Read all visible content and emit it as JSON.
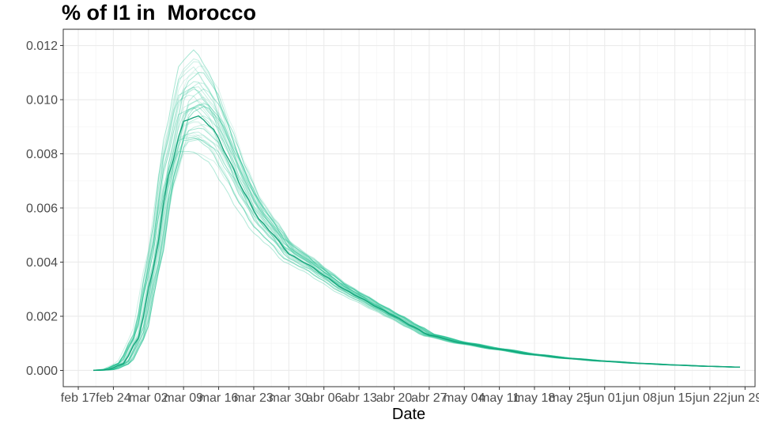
{
  "chart_data": {
    "type": "line",
    "title": "% of I1 in  Morocco",
    "xlabel": "Date",
    "ylabel": "",
    "x_range": [
      "2020-02-14",
      "2020-07-01"
    ],
    "ylim": [
      -0.0006,
      0.0126
    ],
    "x_ticks": [
      "feb 17",
      "feb 24",
      "mar 02",
      "mar 09",
      "mar 16",
      "mar 23",
      "mar 30",
      "abr 06",
      "abr 13",
      "abr 20",
      "abr 27",
      "may 04",
      "may 11",
      "may 18",
      "may 25",
      "jun 01",
      "jun 08",
      "jun 15",
      "jun 22",
      "jun 29"
    ],
    "x_tick_dates": [
      "2020-02-17",
      "2020-02-24",
      "2020-03-02",
      "2020-03-09",
      "2020-03-16",
      "2020-03-23",
      "2020-03-30",
      "2020-04-06",
      "2020-04-13",
      "2020-04-20",
      "2020-04-27",
      "2020-05-04",
      "2020-05-11",
      "2020-05-18",
      "2020-05-25",
      "2020-06-01",
      "2020-06-08",
      "2020-06-15",
      "2020-06-22",
      "2020-06-29"
    ],
    "y_ticks": [
      "0.000",
      "0.002",
      "0.004",
      "0.006",
      "0.008",
      "0.010",
      "0.012"
    ],
    "y_tick_values": [
      0,
      0.002,
      0.004,
      0.006,
      0.008,
      0.01,
      0.012
    ],
    "grid": true,
    "legend": "none",
    "colors": {
      "series": "#1dbf8e",
      "panel_border": "#333333",
      "grid_major": "#ebebeb",
      "grid_minor": "#f5f5f5"
    },
    "series": [
      {
        "role": "median",
        "x": [
          "2020-02-20",
          "2020-02-23",
          "2020-02-26",
          "2020-02-29",
          "2020-03-03",
          "2020-03-06",
          "2020-03-09",
          "2020-03-12",
          "2020-03-15",
          "2020-03-18",
          "2020-03-21",
          "2020-03-24",
          "2020-03-27",
          "2020-03-30",
          "2020-04-03",
          "2020-04-06",
          "2020-04-10",
          "2020-04-13",
          "2020-04-17",
          "2020-04-20",
          "2020-04-24",
          "2020-04-27",
          "2020-05-04",
          "2020-05-11",
          "2020-05-18",
          "2020-05-25",
          "2020-06-01",
          "2020-06-08",
          "2020-06-15",
          "2020-06-22",
          "2020-06-28"
        ],
        "values": [
          0.0,
          3e-05,
          0.00025,
          0.0012,
          0.0038,
          0.0072,
          0.0092,
          0.0094,
          0.0089,
          0.0078,
          0.0066,
          0.0056,
          0.005,
          0.0043,
          0.0039,
          0.0035,
          0.003,
          0.0027,
          0.0023,
          0.002,
          0.0016,
          0.0013,
          0.001,
          0.00078,
          0.00058,
          0.00044,
          0.00034,
          0.00026,
          0.0002,
          0.00015,
          0.00012
        ]
      }
    ],
    "band": {
      "role": "simulation runs",
      "count": 40,
      "peak_min": 0.0076,
      "peak_max": 0.0119
    }
  }
}
